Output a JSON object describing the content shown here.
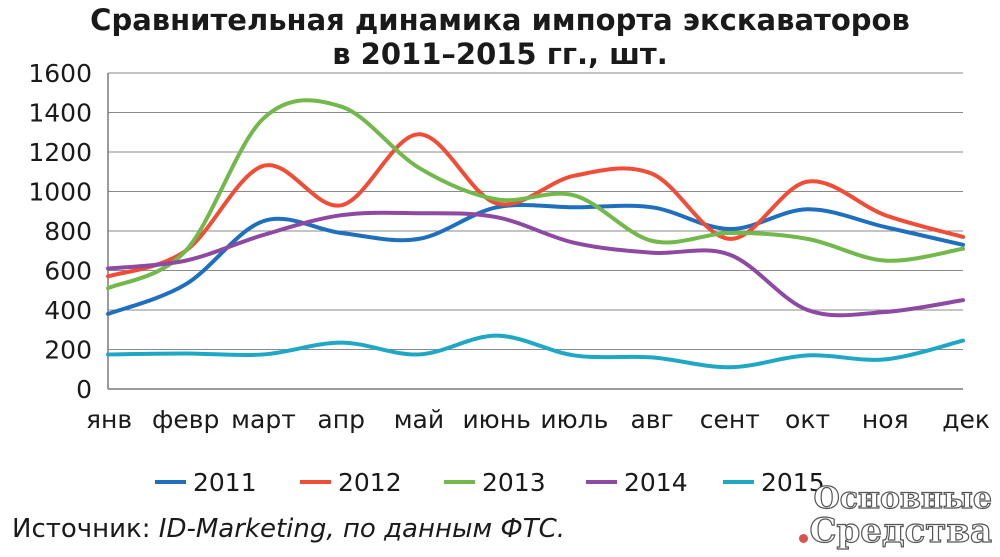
{
  "chart_data": {
    "type": "line",
    "title_line1": "Сравнительная динамика импорта экскаваторов",
    "title_line2": "в 2011–2015 гг., шт.",
    "xlabel": "",
    "ylabel": "",
    "ylim": [
      0,
      1600
    ],
    "yticks": [
      "0",
      "200",
      "400",
      "600",
      "800",
      "1000",
      "1200",
      "1400",
      "1600"
    ],
    "categories": [
      "янв",
      "февр",
      "март",
      "апр",
      "май",
      "июнь",
      "июль",
      "авг",
      "сент",
      "окт",
      "ноя",
      "дек"
    ],
    "grid": true,
    "legend_position": "bottom",
    "series": [
      {
        "name": "2011",
        "color": "#1f6fbf",
        "values": [
          380,
          530,
          850,
          790,
          760,
          920,
          920,
          920,
          810,
          910,
          820,
          730
        ]
      },
      {
        "name": "2012",
        "color": "#f04c36",
        "values": [
          570,
          700,
          1130,
          930,
          1290,
          940,
          1080,
          1090,
          760,
          1050,
          880,
          770
        ]
      },
      {
        "name": "2013",
        "color": "#72b84a",
        "values": [
          510,
          700,
          1370,
          1430,
          1120,
          960,
          980,
          750,
          790,
          760,
          650,
          710
        ]
      },
      {
        "name": "2014",
        "color": "#8c4aa3",
        "values": [
          610,
          650,
          780,
          880,
          890,
          870,
          740,
          690,
          680,
          400,
          390,
          450
        ]
      },
      {
        "name": "2015",
        "color": "#1fa7c6",
        "values": [
          175,
          180,
          175,
          235,
          175,
          270,
          170,
          160,
          110,
          170,
          150,
          245
        ]
      }
    ]
  },
  "source": {
    "prefix": "Источник: ",
    "text": "ID-Marketing, по данным ФТС."
  },
  "logo": {
    "line1": "Основные",
    "line2": "Средства"
  }
}
